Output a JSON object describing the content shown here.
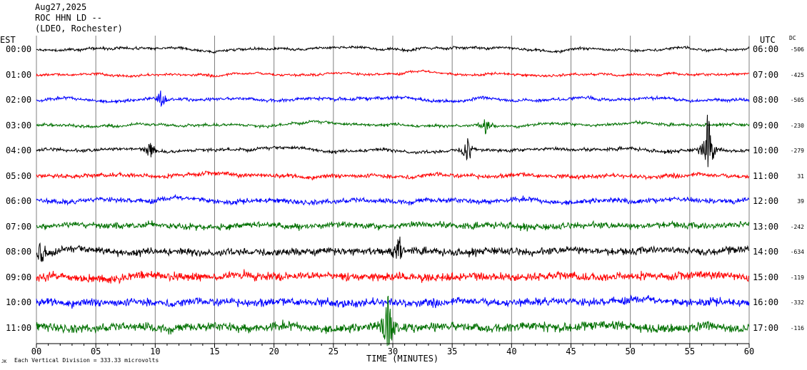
{
  "header": {
    "date": "Aug27,2025",
    "station": "ROC HHN LD --",
    "network": "(LDEO, Rochester)"
  },
  "left_axis_title": "EST",
  "right_axis_title": "UTC",
  "dc_title": "DC",
  "footer": {
    "logo": "JK",
    "note": "Each Vertical Division = 333.33 microvolts"
  },
  "colors": {
    "trace_cycle": [
      "#000000",
      "#ff0000",
      "#0000ff",
      "#007000"
    ],
    "grid": "#808080",
    "axis": "#000000",
    "background": "#ffffff"
  },
  "chart_data": {
    "type": "line",
    "title": "ROC HHN LD --",
    "xlabel": "TIME (MINUTES)",
    "xlim": [
      0,
      60
    ],
    "x_ticks": [
      "00",
      "05",
      "10",
      "15",
      "20",
      "25",
      "30",
      "35",
      "40",
      "45",
      "50",
      "55",
      "60"
    ],
    "grid": true,
    "rows": [
      {
        "est": "00:00",
        "utc": "06:00",
        "dc": "-506",
        "color": "#000000",
        "noise": 2.2
      },
      {
        "est": "01:00",
        "utc": "07:00",
        "dc": "-425",
        "color": "#ff0000",
        "noise": 2.0
      },
      {
        "est": "02:00",
        "utc": "08:00",
        "dc": "-505",
        "color": "#0000ff",
        "noise": 2.6
      },
      {
        "est": "03:00",
        "utc": "09:00",
        "dc": "-230",
        "color": "#007000",
        "noise": 2.4
      },
      {
        "est": "04:00",
        "utc": "10:00",
        "dc": "-279",
        "color": "#000000",
        "noise": 2.8
      },
      {
        "est": "05:00",
        "utc": "11:00",
        "dc": "31",
        "color": "#ff0000",
        "noise": 3.6
      },
      {
        "est": "06:00",
        "utc": "12:00",
        "dc": "39",
        "color": "#0000ff",
        "noise": 4.4
      },
      {
        "est": "07:00",
        "utc": "13:00",
        "dc": "-242",
        "color": "#007000",
        "noise": 5.6
      },
      {
        "est": "08:00",
        "utc": "14:00",
        "dc": "-634",
        "color": "#000000",
        "noise": 6.4
      },
      {
        "est": "09:00",
        "utc": "15:00",
        "dc": "-119",
        "color": "#ff0000",
        "noise": 7.2
      },
      {
        "est": "10:00",
        "utc": "16:00",
        "dc": "-332",
        "color": "#0000ff",
        "noise": 7.0
      },
      {
        "est": "11:00",
        "utc": "17:00",
        "dc": "-116",
        "color": "#007000",
        "noise": 7.8
      }
    ],
    "events": [
      {
        "row": 2,
        "minute": 10.5,
        "amp": 12
      },
      {
        "row": 3,
        "minute": 37.8,
        "amp": 14
      },
      {
        "row": 4,
        "minute": 9.5,
        "amp": 16
      },
      {
        "row": 4,
        "minute": 36.3,
        "amp": 22
      },
      {
        "row": 4,
        "minute": 56.5,
        "amp": 60
      },
      {
        "row": 8,
        "minute": 0.4,
        "amp": 18
      },
      {
        "row": 8,
        "minute": 30.5,
        "amp": 26
      },
      {
        "row": 11,
        "minute": 29.6,
        "amp": 50
      }
    ]
  }
}
